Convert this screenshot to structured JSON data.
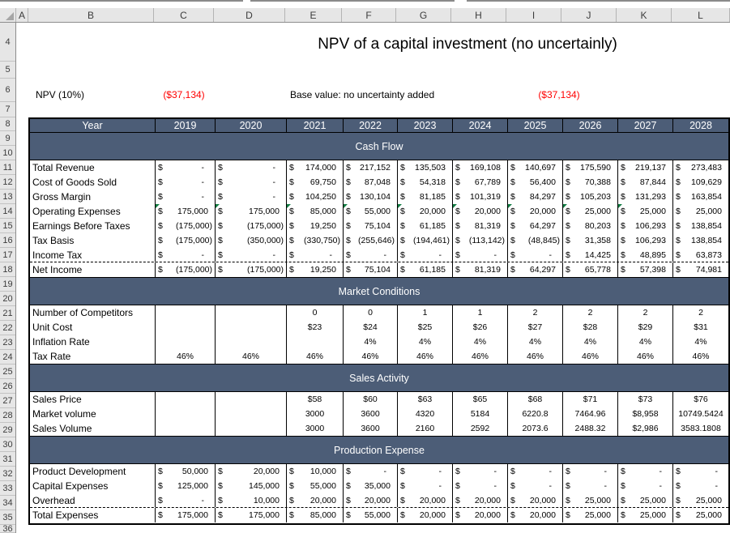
{
  "chrome": {
    "column_letters": [
      "A",
      "B",
      "C",
      "D",
      "E",
      "F",
      "G",
      "H",
      "I",
      "J",
      "K",
      "L"
    ],
    "row_numbers": [
      4,
      5,
      6,
      7,
      8,
      9,
      10,
      11,
      12,
      13,
      14,
      15,
      16,
      17,
      18,
      19,
      20,
      21,
      22,
      23,
      24,
      25,
      26,
      27,
      28,
      29,
      30,
      31,
      32,
      33,
      34,
      35,
      36
    ]
  },
  "header": {
    "title": "NPV of a capital investment (no uncertainly)",
    "npv_label": "NPV (10%)",
    "npv_value": "($37,134)",
    "base_label": "Base value: no uncertainty added",
    "base_value": "($37,134)",
    "value_color": "#FF0000"
  },
  "table": {
    "header_bg": "#4C5D77",
    "flag_color": "#107C41",
    "year_header": {
      "label": "Year",
      "years": [
        "2019",
        "2020",
        "2021",
        "2022",
        "2023",
        "2024",
        "2025",
        "2026",
        "2027",
        "2028"
      ]
    },
    "sections": [
      {
        "title": "Cash Flow",
        "rows": [
          {
            "label": "Total Revenue",
            "format": "acct",
            "values": [
              "-",
              "-",
              "174,000",
              "217,152",
              "135,503",
              "169,108",
              "140,697",
              "175,590",
              "219,137",
              "273,483"
            ]
          },
          {
            "label": "Cost of Goods Sold",
            "format": "acct",
            "values": [
              "-",
              "-",
              "69,750",
              "87,048",
              "54,318",
              "67,789",
              "56,400",
              "70,388",
              "87,844",
              "109,629"
            ]
          },
          {
            "label": "Gross Margin",
            "format": "acct",
            "values": [
              "-",
              "-",
              "104,250",
              "130,104",
              "81,185",
              "101,319",
              "84,297",
              "105,203",
              "131,293",
              "163,854"
            ]
          },
          {
            "label": "Operating Expenses",
            "format": "acct",
            "values": [
              "175,000",
              "175,000",
              "85,000",
              "55,000",
              "20,000",
              "20,000",
              "20,000",
              "25,000",
              "25,000",
              "25,000"
            ],
            "flags": [
              1,
              1,
              1,
              1,
              1,
              1,
              1,
              1,
              1,
              0
            ]
          },
          {
            "label": "Earnings Before Taxes",
            "format": "acct",
            "values": [
              "(175,000)",
              "(175,000)",
              "19,250",
              "75,104",
              "61,185",
              "81,319",
              "64,297",
              "80,203",
              "106,293",
              "138,854"
            ]
          },
          {
            "label": "Tax Basis",
            "format": "acct",
            "values": [
              "(175,000)",
              "(350,000)",
              "(330,750)",
              "(255,646)",
              "(194,461)",
              "(113,142)",
              "(48,845)",
              "31,358",
              "106,293",
              "138,854"
            ]
          },
          {
            "label": "Income Tax",
            "format": "acct",
            "dashed_bottom": true,
            "values": [
              "-",
              "-",
              "-",
              "-",
              "-",
              "-",
              "-",
              "14,425",
              "48,895",
              "63,873"
            ]
          },
          {
            "label": "Net Income",
            "format": "acct",
            "values": [
              "(175,000)",
              "(175,000)",
              "19,250",
              "75,104",
              "61,185",
              "81,319",
              "64,297",
              "65,778",
              "57,398",
              "74,981"
            ]
          }
        ]
      },
      {
        "title": "Market Conditions",
        "rows": [
          {
            "label": "Number of Competitors",
            "format": "center",
            "values": [
              "",
              "",
              "0",
              "0",
              "1",
              "1",
              "2",
              "2",
              "2",
              "2"
            ]
          },
          {
            "label": "Unit Cost",
            "format": "center",
            "values": [
              "",
              "",
              "$23",
              "$24",
              "$25",
              "$26",
              "$27",
              "$28",
              "$29",
              "$31"
            ]
          },
          {
            "label": "Inflation Rate",
            "format": "center",
            "values": [
              "",
              "",
              "",
              "4%",
              "4%",
              "4%",
              "4%",
              "4%",
              "4%",
              "4%"
            ]
          },
          {
            "label": "Tax Rate",
            "format": "center",
            "values": [
              "46%",
              "46%",
              "46%",
              "46%",
              "46%",
              "46%",
              "46%",
              "46%",
              "46%",
              "46%"
            ]
          }
        ]
      },
      {
        "title": "Sales Activity",
        "rows": [
          {
            "label": "Sales Price",
            "format": "center",
            "values": [
              "",
              "",
              "$58",
              "$60",
              "$63",
              "$65",
              "$68",
              "$71",
              "$73",
              "$76"
            ]
          },
          {
            "label": "Market volume",
            "format": "center",
            "values": [
              "",
              "",
              "3000",
              "3600",
              "4320",
              "5184",
              "6220.8",
              "7464.96",
              "$8,958",
              "10749.5424"
            ]
          },
          {
            "label": "Sales Volume",
            "format": "center",
            "values": [
              "",
              "",
              "3000",
              "3600",
              "2160",
              "2592",
              "2073.6",
              "2488.32",
              "$2,986",
              "3583.1808"
            ]
          }
        ]
      },
      {
        "title": "Production Expense",
        "rows": [
          {
            "label": "Product Development",
            "format": "acct",
            "values": [
              "50,000",
              "20,000",
              "10,000",
              "-",
              "-",
              "-",
              "-",
              "-",
              "-",
              "-"
            ]
          },
          {
            "label": "Capital Expenses",
            "format": "acct",
            "values": [
              "125,000",
              "145,000",
              "55,000",
              "35,000",
              "-",
              "-",
              "-",
              "-",
              "-",
              "-"
            ]
          },
          {
            "label": "Overhead",
            "format": "acct",
            "dashed_bottom": true,
            "values": [
              "-",
              "10,000",
              "20,000",
              "20,000",
              "20,000",
              "20,000",
              "20,000",
              "25,000",
              "25,000",
              "25,000"
            ]
          },
          {
            "label": "Total Expenses",
            "format": "acct",
            "values": [
              "175,000",
              "175,000",
              "85,000",
              "55,000",
              "20,000",
              "20,000",
              "20,000",
              "25,000",
              "25,000",
              "25,000"
            ]
          }
        ]
      }
    ]
  }
}
